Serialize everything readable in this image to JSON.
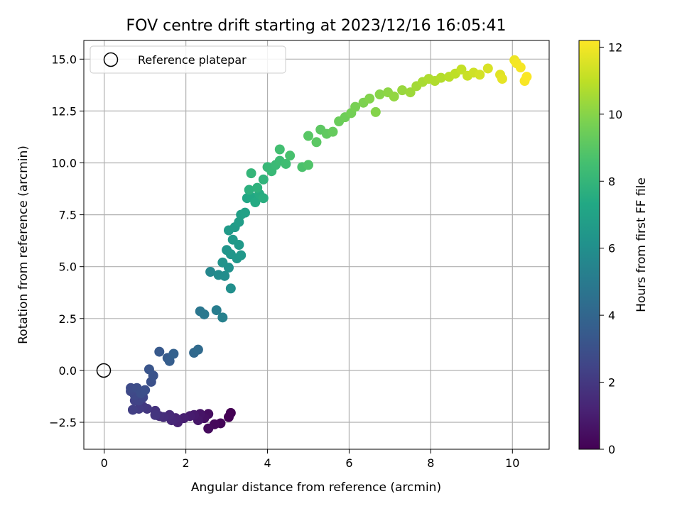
{
  "chart_data": {
    "type": "scatter",
    "title": "FOV centre drift starting at 2023/12/16 16:05:41",
    "xlabel": "Angular distance from reference (arcmin)",
    "ylabel": "Rotation from reference (arcmin)",
    "colorbar_label": "Hours from first FF file",
    "xlim": [
      -0.5,
      10.9
    ],
    "ylim": [
      -3.8,
      15.9
    ],
    "clim": [
      0,
      12.2
    ],
    "xticks": [
      0,
      2,
      4,
      6,
      8,
      10
    ],
    "xtick_labels": [
      "0",
      "2",
      "4",
      "6",
      "8",
      "10"
    ],
    "yticks": [
      -2.5,
      0,
      2.5,
      5,
      7.5,
      10,
      12.5,
      15
    ],
    "ytick_labels": [
      "−2.5",
      "0.0",
      "2.5",
      "5.0",
      "7.5",
      "10.0",
      "12.5",
      "15.0"
    ],
    "cticks": [
      0,
      2,
      4,
      6,
      8,
      10,
      12
    ],
    "ctick_labels": [
      "0",
      "2",
      "4",
      "6",
      "8",
      "10",
      "12"
    ],
    "grid": true,
    "colormap": "viridis",
    "legend": {
      "placement": "top-left",
      "entries": [
        "Reference platepar"
      ]
    },
    "reference_point": {
      "x": 0,
      "y": 0
    },
    "points": [
      [
        3.1,
        -2.05,
        0.0
      ],
      [
        3.05,
        -2.25,
        0.05
      ],
      [
        2.85,
        -2.55,
        0.15
      ],
      [
        2.7,
        -2.6,
        0.25
      ],
      [
        2.55,
        -2.8,
        0.35
      ],
      [
        2.55,
        -2.1,
        0.45
      ],
      [
        2.45,
        -2.3,
        0.55
      ],
      [
        2.35,
        -2.1,
        0.65
      ],
      [
        2.3,
        -2.4,
        0.75
      ],
      [
        2.2,
        -2.15,
        0.85
      ],
      [
        2.1,
        -2.2,
        0.95
      ],
      [
        1.95,
        -2.3,
        1.05
      ],
      [
        1.8,
        -2.5,
        1.15
      ],
      [
        1.75,
        -2.3,
        1.25
      ],
      [
        1.65,
        -2.4,
        1.35
      ],
      [
        1.6,
        -2.15,
        1.45
      ],
      [
        1.45,
        -2.25,
        1.55
      ],
      [
        1.35,
        -2.2,
        1.65
      ],
      [
        1.25,
        -1.95,
        1.75
      ],
      [
        1.25,
        -2.15,
        1.85
      ],
      [
        1.05,
        -1.85,
        1.95
      ],
      [
        0.95,
        -1.75,
        2.05
      ],
      [
        0.85,
        -1.85,
        2.15
      ],
      [
        0.7,
        -1.9,
        2.25
      ],
      [
        0.75,
        -1.45,
        2.35
      ],
      [
        0.85,
        -1.45,
        2.45
      ],
      [
        0.95,
        -1.3,
        2.55
      ],
      [
        0.75,
        -1.2,
        2.6
      ],
      [
        0.65,
        -1.0,
        2.65
      ],
      [
        0.65,
        -0.85,
        2.75
      ],
      [
        0.8,
        -0.85,
        2.85
      ],
      [
        0.9,
        -1.1,
        2.9
      ],
      [
        1.0,
        -0.95,
        2.95
      ],
      [
        1.15,
        -0.55,
        3.0
      ],
      [
        1.2,
        -0.25,
        3.1
      ],
      [
        1.1,
        0.05,
        3.2
      ],
      [
        1.35,
        0.9,
        3.4
      ],
      [
        1.55,
        0.6,
        3.5
      ],
      [
        1.6,
        0.45,
        3.6
      ],
      [
        1.7,
        0.8,
        3.75
      ],
      [
        2.2,
        0.85,
        4.1
      ],
      [
        2.3,
        1.0,
        4.2
      ],
      [
        2.35,
        2.85,
        4.8
      ],
      [
        2.45,
        2.7,
        4.9
      ],
      [
        2.75,
        2.9,
        5.1
      ],
      [
        2.9,
        2.55,
        5.3
      ],
      [
        2.6,
        4.75,
        5.6
      ],
      [
        2.8,
        4.6,
        5.8
      ],
      [
        2.95,
        4.55,
        5.9
      ],
      [
        3.1,
        3.95,
        6.0
      ],
      [
        3.05,
        4.95,
        6.1
      ],
      [
        2.9,
        5.2,
        6.2
      ],
      [
        3.0,
        5.8,
        6.3
      ],
      [
        3.1,
        5.6,
        6.35
      ],
      [
        3.25,
        5.4,
        6.4
      ],
      [
        3.35,
        5.55,
        6.45
      ],
      [
        3.3,
        6.05,
        6.5
      ],
      [
        3.15,
        6.3,
        6.55
      ],
      [
        3.05,
        6.75,
        6.6
      ],
      [
        3.2,
        6.9,
        6.65
      ],
      [
        3.3,
        7.15,
        6.75
      ],
      [
        3.35,
        7.5,
        6.85
      ],
      [
        3.45,
        7.6,
        6.95
      ],
      [
        3.5,
        8.3,
        7.2
      ],
      [
        3.6,
        8.35,
        7.3
      ],
      [
        3.7,
        8.1,
        7.4
      ],
      [
        3.8,
        8.5,
        7.5
      ],
      [
        3.9,
        8.3,
        7.6
      ],
      [
        3.55,
        8.7,
        7.7
      ],
      [
        3.75,
        8.8,
        7.8
      ],
      [
        3.9,
        9.2,
        7.9
      ],
      [
        3.6,
        9.5,
        8.0
      ],
      [
        4.0,
        9.8,
        8.1
      ],
      [
        4.1,
        9.6,
        8.15
      ],
      [
        4.2,
        9.9,
        8.2
      ],
      [
        4.3,
        10.1,
        8.3
      ],
      [
        4.45,
        9.95,
        8.4
      ],
      [
        4.3,
        10.65,
        8.5
      ],
      [
        4.55,
        10.35,
        8.6
      ],
      [
        4.85,
        9.8,
        8.7
      ],
      [
        5.0,
        9.9,
        8.8
      ],
      [
        5.0,
        11.3,
        9.0
      ],
      [
        5.2,
        11.0,
        9.05
      ],
      [
        5.3,
        11.6,
        9.1
      ],
      [
        5.45,
        11.4,
        9.2
      ],
      [
        5.6,
        11.5,
        9.3
      ],
      [
        5.75,
        12.0,
        9.4
      ],
      [
        5.9,
        12.2,
        9.5
      ],
      [
        6.05,
        12.4,
        9.6
      ],
      [
        6.15,
        12.7,
        9.7
      ],
      [
        6.35,
        12.9,
        9.8
      ],
      [
        6.5,
        13.1,
        9.9
      ],
      [
        6.65,
        12.45,
        9.95
      ],
      [
        6.75,
        13.3,
        10.0
      ],
      [
        6.95,
        13.4,
        10.1
      ],
      [
        7.1,
        13.2,
        10.2
      ],
      [
        7.3,
        13.5,
        10.3
      ],
      [
        7.5,
        13.4,
        10.4
      ],
      [
        7.65,
        13.7,
        10.5
      ],
      [
        7.8,
        13.9,
        10.6
      ],
      [
        7.95,
        14.05,
        10.7
      ],
      [
        8.1,
        13.95,
        10.75
      ],
      [
        8.25,
        14.1,
        10.8
      ],
      [
        8.45,
        14.15,
        10.9
      ],
      [
        8.6,
        14.3,
        11.0
      ],
      [
        8.75,
        14.5,
        11.1
      ],
      [
        8.9,
        14.2,
        11.2
      ],
      [
        9.05,
        14.35,
        11.3
      ],
      [
        9.2,
        14.25,
        11.4
      ],
      [
        9.4,
        14.55,
        11.5
      ],
      [
        9.7,
        14.25,
        11.65
      ],
      [
        9.75,
        14.05,
        11.75
      ],
      [
        10.05,
        14.95,
        11.9
      ],
      [
        10.1,
        14.8,
        12.0
      ],
      [
        10.2,
        14.6,
        12.05
      ],
      [
        10.3,
        13.95,
        12.1
      ],
      [
        10.35,
        14.15,
        12.15
      ]
    ]
  }
}
